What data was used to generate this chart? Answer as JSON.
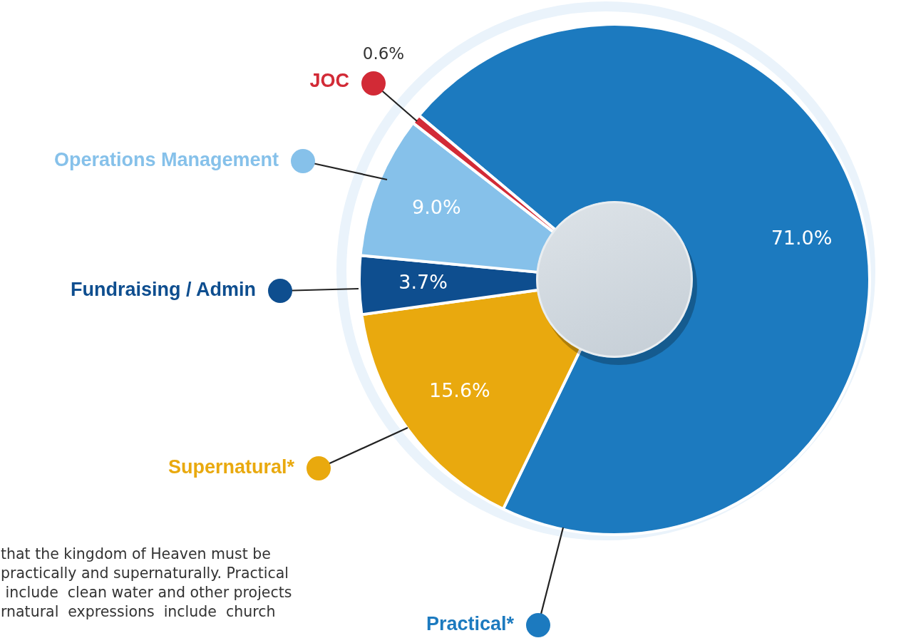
{
  "chart_data": {
    "type": "donut",
    "categories": [
      "Practical*",
      "Supernatural*",
      "Fundraising / Admin",
      "Operations Management",
      "JOC"
    ],
    "values": [
      71.0,
      15.6,
      3.7,
      9.0,
      0.6
    ],
    "colors": [
      "#1c7abf",
      "#e9a90e",
      "#0e4e8f",
      "#86c1ea",
      "#d22a36"
    ],
    "value_labels": [
      "71.0%",
      "15.6%",
      "3.7%",
      "9.0%",
      "0.6%"
    ],
    "legend": "left",
    "annotations": [
      "that the kingdom of Heaven must be\npractically and supernaturally. Practical\n include  clean water and other projects\nrnatural  expressions  include  church"
    ]
  }
}
